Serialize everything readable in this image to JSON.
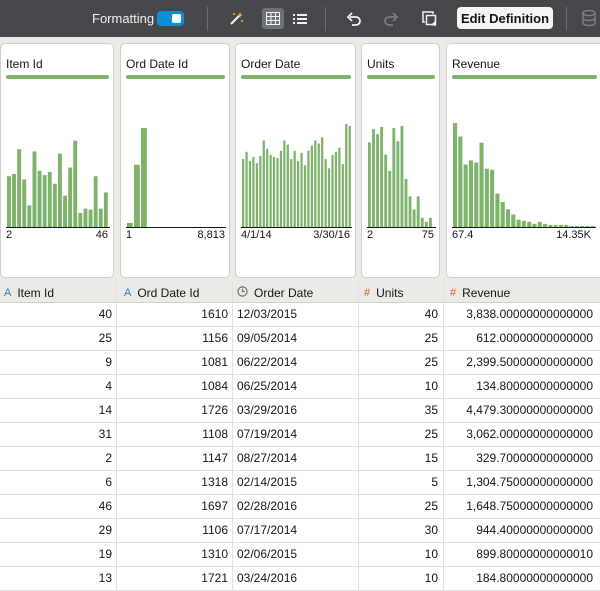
{
  "toolbar": {
    "formatting_label": "Formatting",
    "formatting_on": true,
    "edit_definition_label": "Edit Definition",
    "accent_color": "#0f8ed1"
  },
  "profile_cards": [
    {
      "title": "Item Id",
      "min": "2",
      "max": "46"
    },
    {
      "title": "Ord Date Id",
      "min": "1",
      "max": "8,813"
    },
    {
      "title": "Order Date",
      "min": "4/1/14",
      "max": "3/30/16"
    },
    {
      "title": "Units",
      "min": "2",
      "max": "75"
    },
    {
      "title": "Revenue",
      "min": "67.4",
      "max": "14.35K"
    }
  ],
  "histogram_color": "#7db36b",
  "histograms": [
    [
      0.47,
      0.49,
      0.72,
      0.44,
      0.2,
      0.7,
      0.52,
      0.48,
      0.51,
      0.4,
      0.68,
      0.29,
      0.55,
      0.8,
      0.13,
      0.17,
      0.16,
      0.47,
      0.17,
      0.32
    ],
    [
      0.04,
      0.61,
      0.97
    ],
    [
      0.66,
      0.73,
      0.64,
      0.68,
      0.62,
      0.69,
      0.84,
      0.76,
      0.7,
      0.68,
      0.67,
      0.74,
      0.84,
      0.8,
      0.66,
      0.74,
      0.64,
      0.72,
      0.6,
      0.74,
      0.79,
      0.84,
      0.81,
      0.87,
      0.66,
      0.57,
      0.7,
      0.73,
      0.77,
      0.61,
      1.0,
      0.98
    ],
    [
      0.83,
      0.96,
      0.91,
      0.98,
      0.71,
      0.55,
      0.97,
      0.84,
      0.99,
      0.47,
      0.3,
      0.17,
      0.3,
      0.09,
      0.05,
      0.09
    ],
    [
      1.0,
      0.87,
      0.6,
      0.64,
      0.62,
      0.81,
      0.56,
      0.55,
      0.32,
      0.24,
      0.17,
      0.12,
      0.07,
      0.06,
      0.05,
      0.03,
      0.05,
      0.03,
      0.02,
      0.02,
      0.02,
      0.02,
      0.01,
      0.01,
      0.01,
      0.01,
      0.01
    ]
  ],
  "columns": [
    {
      "name": "Item Id",
      "type": "text"
    },
    {
      "name": "Ord Date Id",
      "type": "text"
    },
    {
      "name": "Order Date",
      "type": "date"
    },
    {
      "name": "Units",
      "type": "number"
    },
    {
      "name": "Revenue",
      "type": "number"
    }
  ],
  "rows": [
    [
      "40",
      "1610",
      "12/03/2015",
      "40",
      "3,838.00000000000000"
    ],
    [
      "25",
      "1156",
      "09/05/2014",
      "25",
      "612.00000000000000"
    ],
    [
      "9",
      "1081",
      "06/22/2014",
      "25",
      "2,399.50000000000000"
    ],
    [
      "4",
      "1084",
      "06/25/2014",
      "10",
      "134.80000000000000"
    ],
    [
      "14",
      "1726",
      "03/29/2016",
      "35",
      "4,479.30000000000000"
    ],
    [
      "31",
      "1108",
      "07/19/2014",
      "25",
      "3,062.00000000000000"
    ],
    [
      "2",
      "1147",
      "08/27/2014",
      "15",
      "329.70000000000000"
    ],
    [
      "6",
      "1318",
      "02/14/2015",
      "5",
      "1,304.75000000000000"
    ],
    [
      "46",
      "1697",
      "02/28/2016",
      "25",
      "1,648.75000000000000"
    ],
    [
      "29",
      "1106",
      "07/17/2014",
      "30",
      "944.40000000000000"
    ],
    [
      "19",
      "1310",
      "02/06/2015",
      "10",
      "899.80000000000010"
    ],
    [
      "13",
      "1721",
      "03/24/2016",
      "10",
      "184.80000000000000"
    ]
  ]
}
